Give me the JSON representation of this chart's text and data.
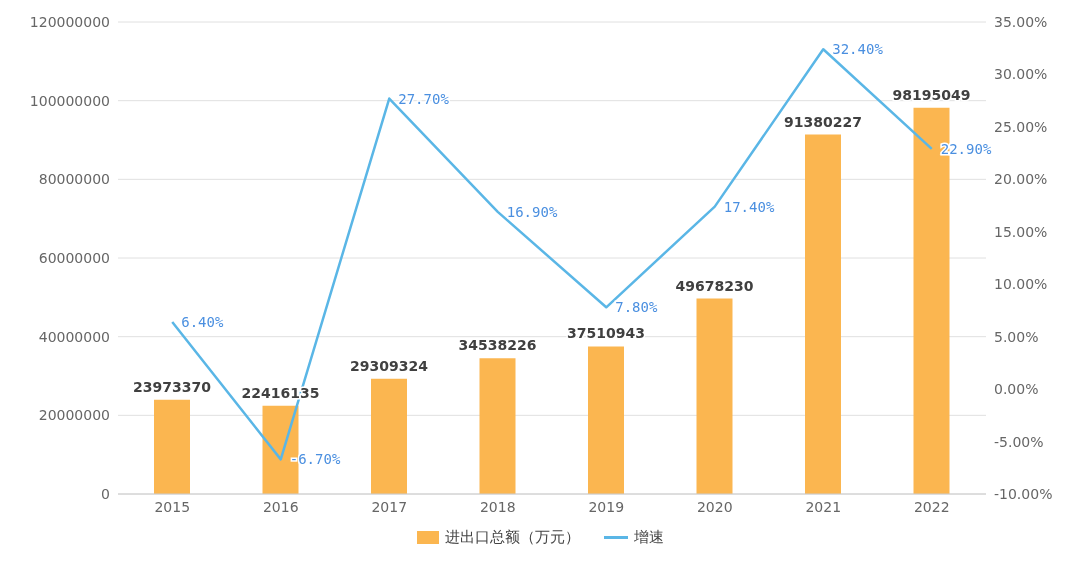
{
  "chart_data": {
    "type": "bar",
    "categories": [
      "2015",
      "2016",
      "2017",
      "2018",
      "2019",
      "2020",
      "2021",
      "2022"
    ],
    "series": [
      {
        "name": "进出口总额（万元）",
        "color": "#fbb650",
        "values": [
          23973370,
          22416135,
          29309324,
          34538226,
          37510943,
          49678230,
          91380227,
          98195049
        ],
        "value_labels": [
          "23973370",
          "22416135",
          "29309324",
          "34538226",
          "37510943",
          "49678230",
          "91380227",
          "98195049"
        ]
      },
      {
        "name": "增速",
        "type": "line",
        "axis": "y2",
        "color": "#5ab6e6",
        "values": [
          6.4,
          -6.7,
          27.7,
          16.9,
          7.8,
          17.4,
          32.4,
          22.9
        ],
        "value_labels": [
          "6.40%",
          "-6.70%",
          "27.70%",
          "16.90%",
          "7.80%",
          "17.40%",
          "32.40%",
          "22.90%"
        ]
      }
    ],
    "ylim": [
      0,
      120000000
    ],
    "yticks": [
      0,
      20000000,
      40000000,
      60000000,
      80000000,
      100000000,
      120000000
    ],
    "y2lim": [
      -10,
      35
    ],
    "y2ticks": [
      {
        "value": -10,
        "label": "-10.00%"
      },
      {
        "value": -5,
        "label": "-5.00%"
      },
      {
        "value": 0,
        "label": "0.00%"
      },
      {
        "value": 5,
        "label": "5.00%"
      },
      {
        "value": 10,
        "label": "10.00%"
      },
      {
        "value": 15,
        "label": "15.00%"
      },
      {
        "value": 20,
        "label": "20.00%"
      },
      {
        "value": 25,
        "label": "25.00%"
      },
      {
        "value": 30,
        "label": "30.00%"
      },
      {
        "value": 35,
        "label": "35.00%"
      }
    ],
    "grid": "y",
    "legend": "bottom",
    "marker": "none",
    "line_style": "solid"
  }
}
